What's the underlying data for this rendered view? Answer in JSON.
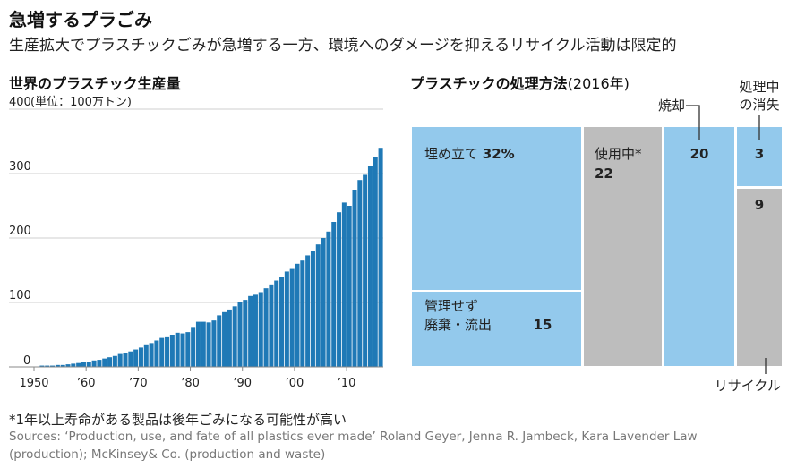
{
  "title": "急増するプラごみ",
  "subtitle": "生産拡大でプラスチックごみが急増する一方、環境へのダメージを抑えるリサイクル活動は限定的",
  "footnote": "*1年以上寿命がある製品は後年ごみになる可能性が高い",
  "source_line1": "Sources: ‘Production, use, and fate of all plastics ever made’ Roland Geyer, Jenna R. Jambeck, Kara Lavender Law",
  "source_line2": "(production); McKinsey& Co. (production and waste)",
  "colors": {
    "bar": "#1f79b6",
    "light_blue": "#93c9ec",
    "gray": "#bdbdbd",
    "leader": "#333333"
  },
  "chart_data": [
    {
      "type": "bar",
      "title": "世界のプラスチック生産量",
      "unit_label": "(単位：100万トン)",
      "ylim": [
        0,
        400
      ],
      "yticks": [
        {
          "value": 400,
          "label": "400"
        },
        {
          "value": 300,
          "label": "300"
        },
        {
          "value": 200,
          "label": "200"
        },
        {
          "value": 100,
          "label": "100"
        },
        {
          "value": 0,
          "label": "0"
        }
      ],
      "xticks": [
        {
          "year": 1950,
          "label": "1950"
        },
        {
          "year": 1960,
          "label": "’60"
        },
        {
          "year": 1970,
          "label": "’70"
        },
        {
          "year": 1980,
          "label": "’80"
        },
        {
          "year": 1990,
          "label": "’90"
        },
        {
          "year": 2000,
          "label": "’00"
        },
        {
          "year": 2010,
          "label": "’10"
        }
      ],
      "categories": [
        1950,
        1951,
        1952,
        1953,
        1954,
        1955,
        1956,
        1957,
        1958,
        1959,
        1960,
        1961,
        1962,
        1963,
        1964,
        1965,
        1966,
        1967,
        1968,
        1969,
        1970,
        1971,
        1972,
        1973,
        1974,
        1975,
        1976,
        1977,
        1978,
        1979,
        1980,
        1981,
        1982,
        1983,
        1984,
        1985,
        1986,
        1987,
        1988,
        1989,
        1990,
        1991,
        1992,
        1993,
        1994,
        1995,
        1996,
        1997,
        1998,
        1999,
        2000,
        2001,
        2002,
        2003,
        2004,
        2005,
        2006,
        2007,
        2008,
        2009,
        2010,
        2011,
        2012,
        2013,
        2014,
        2015
      ],
      "values": [
        2,
        2,
        2,
        3,
        3,
        4,
        5,
        6,
        7,
        8,
        10,
        11,
        13,
        15,
        17,
        20,
        22,
        24,
        27,
        30,
        35,
        37,
        41,
        45,
        46,
        50,
        53,
        52,
        54,
        62,
        70,
        70,
        69,
        72,
        80,
        85,
        89,
        94,
        100,
        104,
        110,
        112,
        116,
        122,
        128,
        134,
        140,
        148,
        152,
        160,
        165,
        173,
        180,
        190,
        200,
        210,
        225,
        240,
        255,
        250,
        275,
        290,
        298,
        312,
        325,
        340
      ]
    },
    {
      "type": "table",
      "title": "プラスチックの処理方法",
      "year_label": "(2016年)",
      "cells": [
        {
          "label": "埋め立て",
          "value": "32%",
          "color": "light_blue"
        },
        {
          "label": "管理せず",
          "label2": "廃棄・流出",
          "value": "15",
          "color": "light_blue"
        },
        {
          "label": "使用中*",
          "value": "22",
          "color": "gray"
        },
        {
          "value": "20",
          "color": "light_blue"
        },
        {
          "value": "3",
          "color": "light_blue"
        },
        {
          "value": "9",
          "color": "gray"
        }
      ],
      "annotations": {
        "incineration": "焼却",
        "in_process_1": "処理中",
        "in_process_2": "の消失",
        "recycle": "リサイクル"
      }
    }
  ]
}
